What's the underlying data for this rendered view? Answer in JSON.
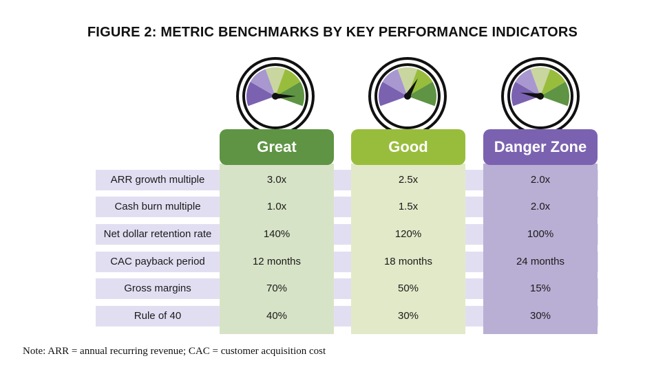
{
  "title": "FIGURE 2: METRIC BENCHMARKS BY KEY PERFORMANCE INDICATORS",
  "colors": {
    "great": "#5e9443",
    "good": "#98bd3c",
    "danger": "#7b62b0",
    "row_band": "#e2def2"
  },
  "chart_data": {
    "type": "table",
    "columns": [
      "Great",
      "Good",
      "Danger Zone"
    ],
    "rows": [
      {
        "metric": "ARR growth multiple",
        "values": [
          "3.0x",
          "2.5x",
          "2.0x"
        ]
      },
      {
        "metric": "Cash burn multiple",
        "values": [
          "1.0x",
          "1.5x",
          "2.0x"
        ]
      },
      {
        "metric": "Net dollar retention rate",
        "values": [
          "140%",
          "120%",
          "100%"
        ]
      },
      {
        "metric": "CAC payback period",
        "values": [
          "12 months",
          "18 months",
          "24 months"
        ]
      },
      {
        "metric": "Gross margins",
        "values": [
          "70%",
          "50%",
          "15%"
        ]
      },
      {
        "metric": "Rule of 40",
        "values": [
          "40%",
          "30%",
          "30%"
        ]
      }
    ],
    "gauges": [
      {
        "column": "Great",
        "needle": "right"
      },
      {
        "column": "Good",
        "needle": "upper-right"
      },
      {
        "column": "Danger Zone",
        "needle": "left"
      }
    ]
  },
  "note": "Note: ARR = annual recurring revenue; CAC = customer acquisition cost"
}
